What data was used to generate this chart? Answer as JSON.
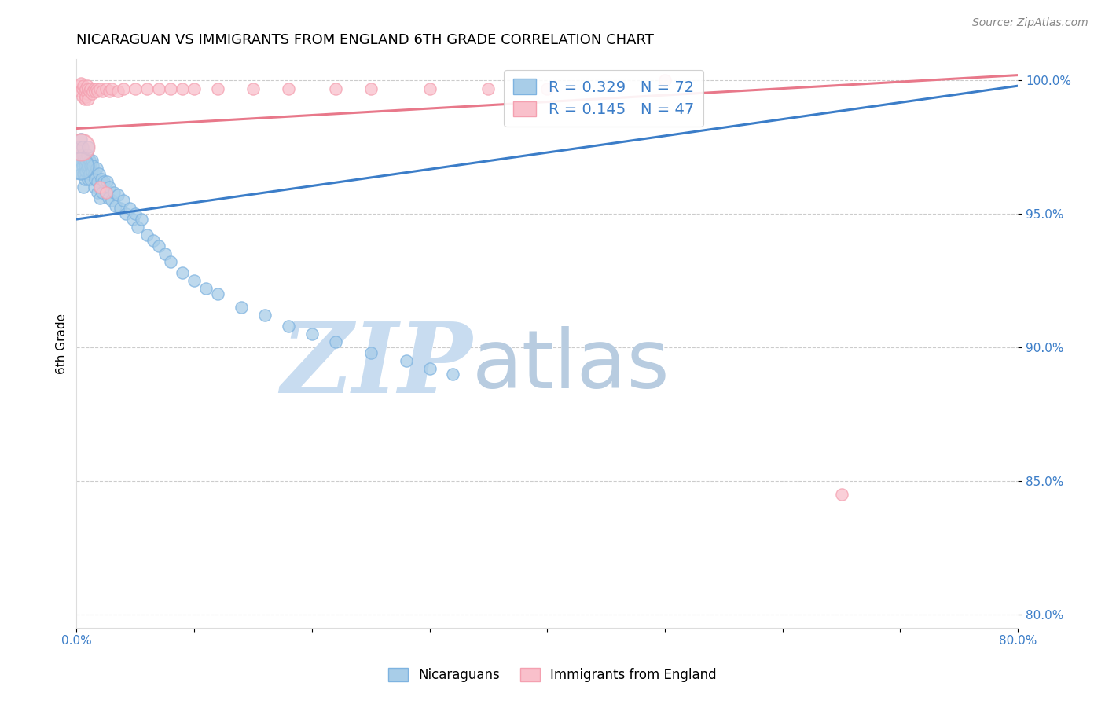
{
  "title": "NICARAGUAN VS IMMIGRANTS FROM ENGLAND 6TH GRADE CORRELATION CHART",
  "source": "Source: ZipAtlas.com",
  "ylabel": "6th Grade",
  "xlim": [
    0.0,
    0.8
  ],
  "ylim": [
    0.795,
    1.008
  ],
  "yticks": [
    0.8,
    0.85,
    0.9,
    0.95,
    1.0
  ],
  "ytick_labels": [
    "80.0%",
    "85.0%",
    "90.0%",
    "95.0%",
    "100.0%"
  ],
  "xticks": [
    0.0,
    0.1,
    0.2,
    0.3,
    0.4,
    0.5,
    0.6,
    0.7,
    0.8
  ],
  "xtick_labels": [
    "0.0%",
    "",
    "",
    "",
    "",
    "",
    "",
    "",
    "80.0%"
  ],
  "blue_R": 0.329,
  "blue_N": 72,
  "pink_R": 0.145,
  "pink_N": 47,
  "blue_line_color": "#3B7DC8",
  "pink_line_color": "#E8788A",
  "watermark_zip": "ZIP",
  "watermark_atlas": "atlas",
  "watermark_color_zip": "#C8DCF0",
  "watermark_color_atlas": "#B8CCE0",
  "blue_line_x": [
    0.0,
    0.8
  ],
  "blue_line_y": [
    0.948,
    0.998
  ],
  "pink_line_x": [
    0.0,
    0.8
  ],
  "pink_line_y": [
    0.982,
    1.002
  ],
  "blue_scatter_x": [
    0.002,
    0.003,
    0.004,
    0.004,
    0.005,
    0.005,
    0.005,
    0.006,
    0.006,
    0.006,
    0.007,
    0.007,
    0.008,
    0.008,
    0.009,
    0.009,
    0.01,
    0.01,
    0.01,
    0.011,
    0.011,
    0.012,
    0.012,
    0.013,
    0.013,
    0.014,
    0.015,
    0.015,
    0.016,
    0.017,
    0.018,
    0.018,
    0.019,
    0.02,
    0.02,
    0.021,
    0.022,
    0.023,
    0.025,
    0.026,
    0.027,
    0.028,
    0.03,
    0.032,
    0.033,
    0.035,
    0.037,
    0.04,
    0.042,
    0.045,
    0.048,
    0.05,
    0.052,
    0.055,
    0.06,
    0.065,
    0.07,
    0.075,
    0.08,
    0.09,
    0.1,
    0.11,
    0.12,
    0.14,
    0.16,
    0.18,
    0.2,
    0.22,
    0.25,
    0.28,
    0.3,
    0.32
  ],
  "blue_scatter_y": [
    0.975,
    0.97,
    0.978,
    0.965,
    0.972,
    0.968,
    0.975,
    0.97,
    0.965,
    0.96,
    0.968,
    0.963,
    0.97,
    0.966,
    0.972,
    0.967,
    0.968,
    0.963,
    0.975,
    0.97,
    0.965,
    0.968,
    0.963,
    0.97,
    0.966,
    0.968,
    0.965,
    0.96,
    0.963,
    0.967,
    0.962,
    0.958,
    0.965,
    0.96,
    0.956,
    0.963,
    0.958,
    0.962,
    0.958,
    0.962,
    0.956,
    0.96,
    0.955,
    0.958,
    0.953,
    0.957,
    0.952,
    0.955,
    0.95,
    0.952,
    0.948,
    0.95,
    0.945,
    0.948,
    0.942,
    0.94,
    0.938,
    0.935,
    0.932,
    0.928,
    0.925,
    0.922,
    0.92,
    0.915,
    0.912,
    0.908,
    0.905,
    0.902,
    0.898,
    0.895,
    0.892,
    0.89
  ],
  "pink_scatter_x": [
    0.002,
    0.003,
    0.004,
    0.005,
    0.005,
    0.006,
    0.007,
    0.007,
    0.008,
    0.008,
    0.009,
    0.009,
    0.01,
    0.01,
    0.011,
    0.012,
    0.013,
    0.014,
    0.015,
    0.016,
    0.017,
    0.018,
    0.02,
    0.022,
    0.025,
    0.028,
    0.03,
    0.035,
    0.04,
    0.05,
    0.06,
    0.07,
    0.08,
    0.09,
    0.1,
    0.12,
    0.15,
    0.18,
    0.22,
    0.25,
    0.3,
    0.35,
    0.4,
    0.02,
    0.025,
    0.5,
    0.65
  ],
  "pink_scatter_y": [
    0.998,
    0.996,
    0.999,
    0.997,
    0.994,
    0.998,
    0.996,
    0.993,
    0.997,
    0.994,
    0.998,
    0.995,
    0.997,
    0.993,
    0.996,
    0.997,
    0.995,
    0.996,
    0.997,
    0.996,
    0.997,
    0.996,
    0.997,
    0.996,
    0.997,
    0.996,
    0.997,
    0.996,
    0.997,
    0.997,
    0.997,
    0.997,
    0.997,
    0.997,
    0.997,
    0.997,
    0.997,
    0.997,
    0.997,
    0.997,
    0.997,
    0.997,
    0.997,
    0.96,
    0.958,
    1.0,
    0.845
  ],
  "large_blue_x": [
    0.003
  ],
  "large_blue_y": [
    0.968
  ],
  "large_pink_x": [
    0.004
  ],
  "large_pink_y": [
    0.975
  ]
}
